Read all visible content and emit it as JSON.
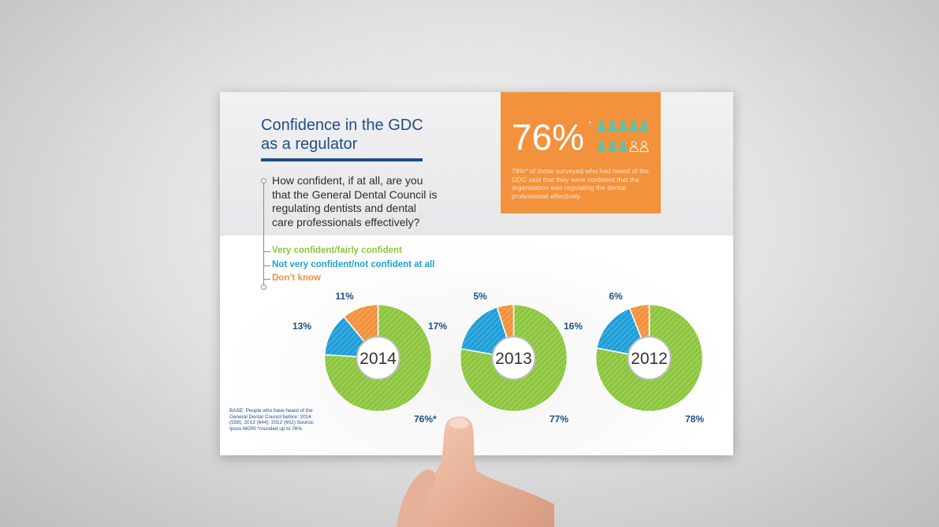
{
  "title": "Confidence in the GDC as a regulator",
  "question": "How confident, if at all, are you that the General Dental Council is regulating dentists and dental care professionals effectively?",
  "legend": [
    {
      "label": "Very confident/fairly confident",
      "color": "#8dc63f"
    },
    {
      "label": "Not very confident/not confident at all",
      "color": "#1f9fd8"
    },
    {
      "label": "Don’t know",
      "color": "#f2923c"
    }
  ],
  "callout": {
    "big_value": "76%",
    "asterisk": "*",
    "text": "76%* of those surveyed who had heard of the GDC said that they were confident that the organisation was regulating the dental professional effectively.",
    "people_total": 10,
    "people_highlighted": 8,
    "highlight_color": "#5fc1a8",
    "background_color": "#f2923c"
  },
  "footnote": "BASE: People who have heard of the General Dental Council before: 2014 (558); 2013 (644); 2012 (602) Source: Ipsos MORI *rounded up to 76%",
  "chart_data": [
    {
      "type": "pie",
      "year": "2014",
      "categories": [
        "Very confident/fairly confident",
        "Not very confident/not confident at all",
        "Don’t know"
      ],
      "values": [
        76,
        13,
        11
      ],
      "labels": [
        "76%*",
        "13%",
        "11%"
      ]
    },
    {
      "type": "pie",
      "year": "2013",
      "categories": [
        "Very confident/fairly confident",
        "Not very confident/not confident at all",
        "Don’t know"
      ],
      "values": [
        77,
        17,
        5
      ],
      "labels": [
        "77%",
        "17%",
        "5%"
      ]
    },
    {
      "type": "pie",
      "year": "2012",
      "categories": [
        "Very confident/fairly confident",
        "Not very confident/not confident at all",
        "Don’t know"
      ],
      "values": [
        78,
        16,
        6
      ],
      "labels": [
        "78%",
        "16%",
        "6%"
      ]
    }
  ]
}
